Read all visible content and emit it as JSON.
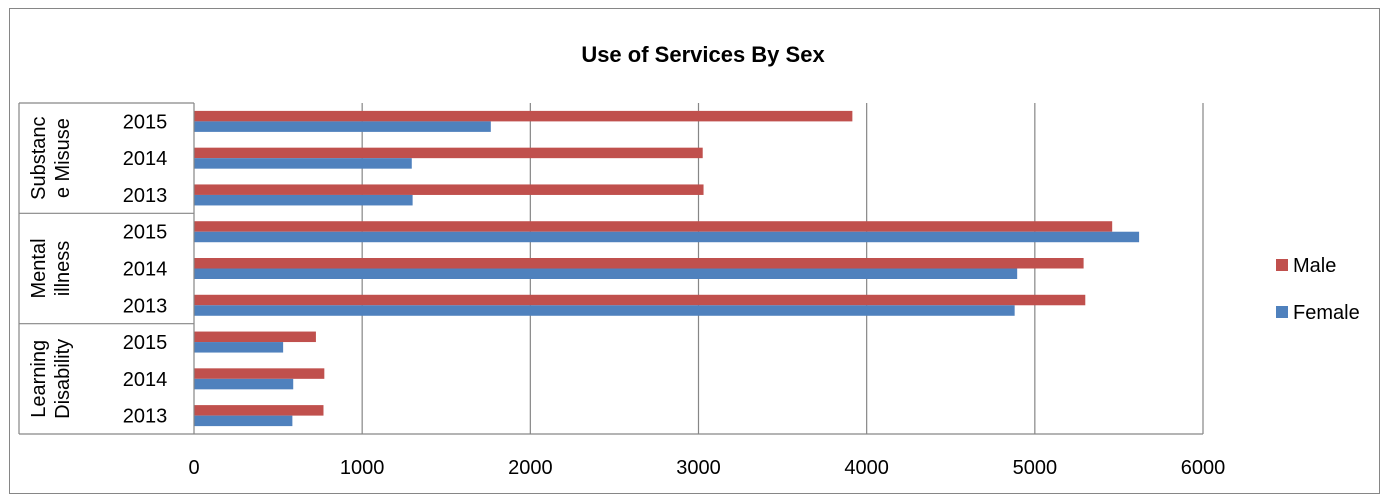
{
  "chart_data": {
    "type": "bar",
    "orientation": "horizontal",
    "title": "Use of Services By Sex",
    "xlabel": "",
    "ylabel": "",
    "xlim": [
      0,
      6000
    ],
    "x_ticks": [
      0,
      1000,
      2000,
      3000,
      4000,
      5000,
      6000
    ],
    "grid": true,
    "legend_position": "right",
    "groups": [
      {
        "name": "Learning Disability",
        "label_lines": [
          "Learning",
          "Disability"
        ],
        "categories": [
          "2013",
          "2014",
          "2015"
        ]
      },
      {
        "name": "Mental illness",
        "label_lines": [
          "Mental",
          "illness"
        ],
        "categories": [
          "2013",
          "2014",
          "2015"
        ]
      },
      {
        "name": "Substance Misuse",
        "label_lines": [
          "Substanc",
          "e Misuse"
        ],
        "categories": [
          "2013",
          "2014",
          "2015"
        ]
      }
    ],
    "series": [
      {
        "name": "Male",
        "color": "#c0504d",
        "values": [
          770,
          775,
          725,
          5300,
          5290,
          5460,
          3030,
          3025,
          3915
        ]
      },
      {
        "name": "Female",
        "color": "#4f81bd",
        "values": [
          585,
          590,
          530,
          4880,
          4895,
          5620,
          1300,
          1295,
          1765
        ]
      }
    ],
    "colors": {
      "grid": "#868686",
      "axis": "#868686",
      "frame": "#868686"
    }
  }
}
